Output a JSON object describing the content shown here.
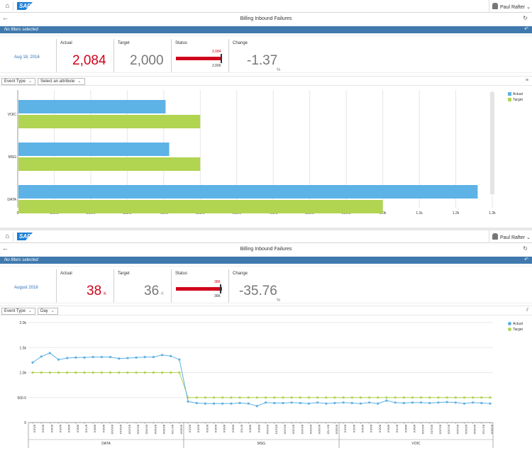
{
  "shell": {
    "home_icon": "home-icon",
    "logo": "SAP",
    "user_name": "Paul Rafter"
  },
  "colors": {
    "accent": "#3f79ad",
    "actual": "#5db2e6",
    "target": "#b1d451",
    "negative": "#d0021b",
    "link": "#2f6fb2"
  },
  "panel1": {
    "title": "Billing Inbound Failures",
    "filter_text": "No filters selected",
    "kpi": {
      "date": "Aug 18, 2016",
      "actual_label": "Actual",
      "actual_value": "2,084",
      "actual_unit": "",
      "target_label": "Target",
      "target_value": "2,000",
      "target_unit": "",
      "status_label": "Status",
      "status_top": "2,084",
      "status_bottom": "2,000",
      "change_label": "Change",
      "change_value": "-1.37",
      "change_unit": "%",
      "status_ratio": 1.042
    },
    "toolbar": {
      "dropdown1": "Event Type",
      "dropdown2": "Select an attribute"
    }
  },
  "panel2": {
    "title": "Billing Inbound Failures",
    "filter_text": "No filters selected",
    "kpi": {
      "date": "August 2016",
      "actual_label": "Actual",
      "actual_value": "38",
      "actual_unit": "K",
      "target_label": "Target",
      "target_value": "36",
      "target_unit": "K",
      "status_label": "Status",
      "status_top": "38K",
      "status_bottom": "36K",
      "change_label": "Change",
      "change_value": "-35.76",
      "change_unit": "%",
      "status_ratio": 1.055
    },
    "toolbar": {
      "dropdown1": "Event Type",
      "dropdown2": "Day"
    }
  },
  "chart_data": [
    {
      "type": "bar",
      "orientation": "horizontal",
      "categories": [
        "VOIC",
        "MSG",
        "DATA"
      ],
      "series": [
        {
          "name": "Actual",
          "values": [
            405,
            415,
            1260
          ]
        },
        {
          "name": "Target",
          "values": [
            500,
            500,
            1000
          ]
        }
      ],
      "xlim": [
        0,
        1300
      ],
      "xticks": [
        0,
        100,
        200,
        300,
        400,
        500,
        600,
        700,
        800,
        900,
        1000,
        1100,
        1200,
        1300
      ],
      "xtick_labels": [
        "0",
        "100.0",
        "200.0",
        "300.0",
        "400.0",
        "500.0",
        "600.0",
        "700.0",
        "800.0",
        "900.0",
        "1.0k",
        "1.1k",
        "1.2k",
        "1.3k"
      ],
      "grid": true,
      "legend": "top-right"
    },
    {
      "type": "line",
      "groups": [
        "DATA",
        "MSG",
        "VOIC"
      ],
      "x": [
        "8/1/16",
        "8/2/16",
        "8/3/16",
        "8/4/16",
        "8/5/16",
        "8/6/16",
        "8/7/16",
        "8/8/16",
        "8/9/16",
        "8/10/16",
        "8/11/16",
        "8/12/16",
        "8/13/16",
        "8/14/16",
        "8/15/16",
        "8/16/16",
        "8/17/16",
        "8/18/16",
        "8/1/16",
        "8/2/16",
        "8/3/16",
        "8/4/16",
        "8/5/16",
        "8/6/16",
        "8/7/16",
        "8/8/16",
        "8/9/16",
        "8/10/16",
        "8/11/16",
        "8/12/16",
        "8/13/16",
        "8/14/16",
        "8/15/16",
        "8/16/16",
        "8/17/16",
        "8/18/16",
        "8/1/16",
        "8/2/16",
        "8/3/16",
        "8/4/16",
        "8/5/16",
        "8/6/16",
        "8/7/16",
        "8/8/16",
        "8/9/16",
        "8/10/16",
        "8/11/16",
        "8/12/16",
        "8/13/16",
        "8/14/16",
        "8/15/16",
        "8/16/16",
        "8/17/16",
        "8/18/16"
      ],
      "series": [
        {
          "name": "Actual",
          "values": [
            1200,
            1320,
            1390,
            1260,
            1290,
            1300,
            1300,
            1310,
            1310,
            1310,
            1280,
            1290,
            1300,
            1310,
            1310,
            1350,
            1330,
            1260,
            420,
            390,
            380,
            380,
            380,
            380,
            390,
            380,
            330,
            400,
            390,
            390,
            400,
            390,
            380,
            400,
            380,
            390,
            400,
            390,
            380,
            400,
            380,
            440,
            400,
            390,
            400,
            400,
            390,
            400,
            410,
            400,
            380,
            400,
            390,
            380
          ]
        },
        {
          "name": "Target",
          "values": [
            1000,
            1000,
            1000,
            1000,
            1000,
            1000,
            1000,
            1000,
            1000,
            1000,
            1000,
            1000,
            1000,
            1000,
            1000,
            1000,
            1000,
            1000,
            500,
            500,
            500,
            500,
            500,
            500,
            500,
            500,
            500,
            500,
            500,
            500,
            500,
            500,
            500,
            500,
            500,
            500,
            500,
            500,
            500,
            500,
            500,
            500,
            500,
            500,
            500,
            500,
            500,
            500,
            500,
            500,
            500,
            500,
            500,
            500
          ]
        }
      ],
      "ylim": [
        0,
        2000
      ],
      "yticks": [
        0,
        500,
        1000,
        1500,
        2000
      ],
      "ytick_labels": [
        "0",
        "500.0",
        "1.0k",
        "1.5k",
        "2.0k"
      ],
      "grid": true,
      "legend": "top-right"
    }
  ]
}
